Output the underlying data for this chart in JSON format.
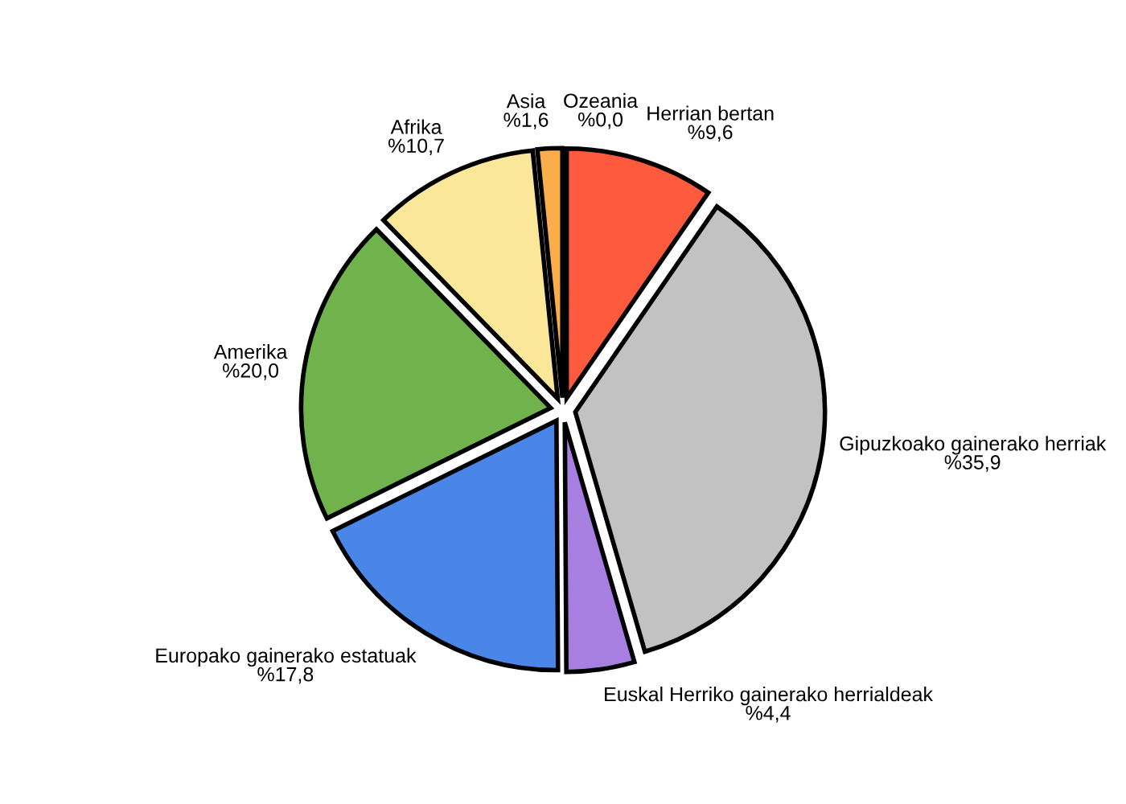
{
  "chart_data": {
    "type": "pie",
    "categories": [
      "Herrian bertan",
      "Gipuzkoako gainerako herriak",
      "Euskal Herriko gainerako herrialdeak",
      "Europako gainerako estatuak",
      "Amerika",
      "Afrika",
      "Asia",
      "Ozeania"
    ],
    "values": [
      9.6,
      35.9,
      4.4,
      17.8,
      20.0,
      10.7,
      1.6,
      0.0
    ],
    "value_labels": [
      "%9,6",
      "%35,9",
      "%4,4",
      "%17,8",
      "%20,0",
      "%10,7",
      "%1,6",
      "%0,0"
    ],
    "colors": [
      "#fd5a3e",
      "#c2c2c2",
      "#a77fe0",
      "#4a86e8",
      "#70b34c",
      "#fbe79a",
      "#f9ad4b",
      "#222222"
    ],
    "legend": false
  }
}
